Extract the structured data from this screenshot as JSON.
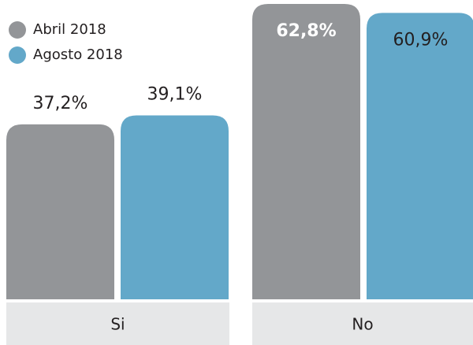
{
  "chart_data": {
    "type": "bar",
    "categories": [
      "Si",
      "No"
    ],
    "series": [
      {
        "name": "Abril 2018",
        "color": "#939598",
        "values": [
          37.2,
          62.8
        ],
        "value_labels": [
          "37,2%",
          "62,8%"
        ]
      },
      {
        "name": "Agosto 2018",
        "color": "#63a8c9",
        "values": [
          39.1,
          60.9
        ],
        "value_labels": [
          "39,1%",
          "60,9%"
        ]
      }
    ]
  }
}
